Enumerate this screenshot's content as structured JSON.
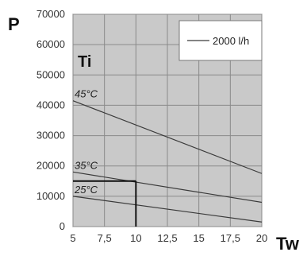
{
  "chart_data": {
    "type": "line",
    "ylabel": "P",
    "xlabel": "Tw",
    "annotation": "Ti",
    "x_ticks": [
      "5",
      "7,5",
      "10",
      "12,5",
      "15",
      "17,5",
      "20"
    ],
    "y_ticks": [
      "0",
      "10000",
      "20000",
      "30000",
      "40000",
      "50000",
      "60000",
      "70000"
    ],
    "xlim": [
      5,
      20
    ],
    "ylim": [
      0,
      70000
    ],
    "grid": true,
    "legend": {
      "placement": "top-right",
      "entries": [
        "2000 l/h"
      ]
    },
    "series": [
      {
        "label": "45°C",
        "x": [
          5,
          20
        ],
        "y": [
          41500,
          17500
        ]
      },
      {
        "label": "35°C",
        "x": [
          5,
          20
        ],
        "y": [
          18000,
          8000
        ]
      },
      {
        "label": "25°C",
        "x": [
          5,
          20
        ],
        "y": [
          10000,
          1500
        ]
      }
    ],
    "reference": {
      "x": 10,
      "y": 15000
    },
    "colors": {
      "plot_bg": "#c9c9c9",
      "grid": "#8a8a8a",
      "line": "#3a3a3a",
      "frame": "#555555"
    }
  }
}
